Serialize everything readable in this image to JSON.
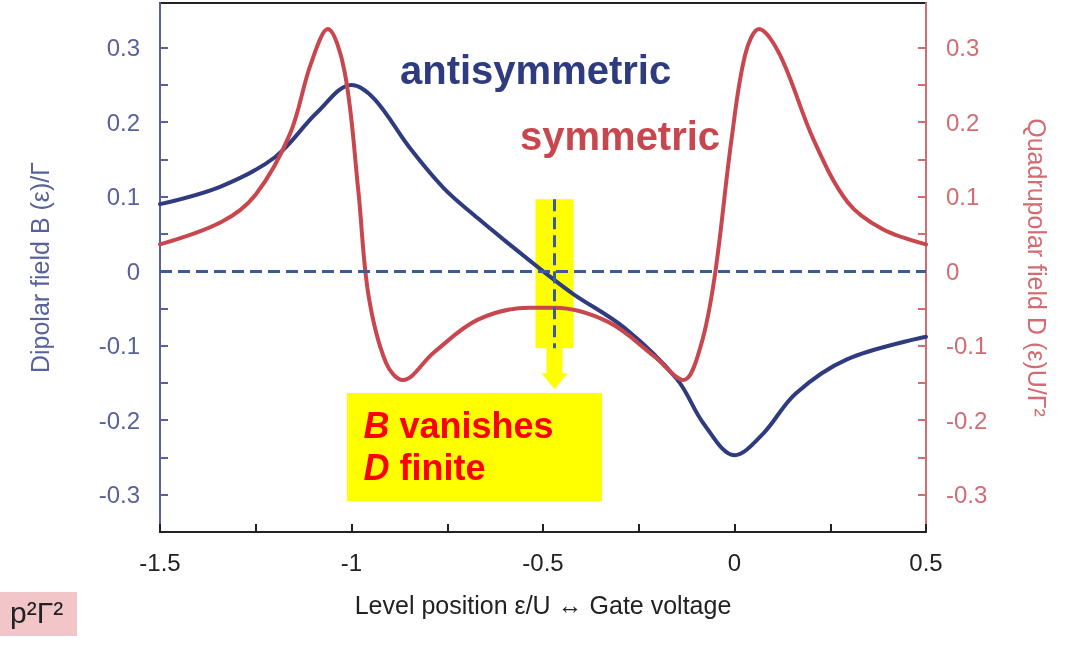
{
  "chart_data": {
    "type": "line",
    "xlabel": "Level position ε/U ↔ Gate voltage",
    "ylabel": "Dipolar field B (ε)/Γ",
    "y2label": "Quadrupolar field D (ε)U/Γ²",
    "xlim": [
      -1.5,
      0.5
    ],
    "xticks": [
      -1.5,
      {
        "value": -1.25,
        "label": null
      },
      -1,
      {
        "value": -0.75,
        "label": null
      },
      -0.5,
      {
        "value": -0.25,
        "label": null
      },
      0,
      {
        "value": 0.25,
        "label": null
      },
      0.5
    ],
    "ylim": [
      -0.35,
      0.36
    ],
    "yticks": [
      -0.3,
      {
        "value": -0.25,
        "label": null
      },
      -0.2,
      {
        "value": -0.15,
        "label": null
      },
      -0.1,
      {
        "value": -0.05,
        "label": null
      },
      0,
      {
        "value": 0.05,
        "label": null
      },
      0.1,
      {
        "value": 0.15,
        "label": null
      },
      0.2,
      {
        "value": 0.25,
        "label": null
      },
      0.3
    ],
    "y2lim": [
      -0.35,
      0.36
    ],
    "y2ticks": [
      -0.3,
      {
        "value": -0.25,
        "label": null
      },
      -0.2,
      {
        "value": -0.15,
        "label": null
      },
      -0.1,
      {
        "value": -0.05,
        "label": null
      },
      0,
      {
        "value": 0.05,
        "label": null
      },
      0.1,
      {
        "value": 0.15,
        "label": null
      },
      0.2,
      {
        "value": 0.25,
        "label": null
      },
      0.3
    ],
    "grid": false,
    "legend": false,
    "series": [
      {
        "name": "antisymmetric",
        "color": "#2e3b7e",
        "x": [
          -1.5,
          -1.34,
          -1.2,
          -1.09,
          -1.0,
          -0.94,
          -0.85,
          -0.76,
          -0.67,
          -0.58,
          -0.48,
          -0.42,
          -0.285,
          -0.15,
          -0.08,
          0.0,
          0.073,
          0.16,
          0.295,
          0.5
        ],
        "values": [
          0.09,
          0.114,
          0.153,
          0.213,
          0.25,
          0.231,
          0.167,
          0.112,
          0.071,
          0.033,
          -0.008,
          -0.031,
          -0.077,
          -0.145,
          -0.205,
          -0.247,
          -0.219,
          -0.164,
          -0.118,
          -0.088
        ]
      },
      {
        "name": "symmetric",
        "color": "#c8474f",
        "axis": "y2",
        "x": [
          -1.5,
          -1.34,
          -1.25,
          -1.16,
          -1.107,
          -1.062,
          -1.018,
          -0.982,
          -0.956,
          -0.91,
          -0.866,
          -0.785,
          -0.67,
          -0.536,
          -0.47,
          -0.33,
          -0.21,
          -0.133,
          -0.088,
          -0.052,
          -0.008,
          0.028,
          0.064,
          0.118,
          0.207,
          0.295,
          0.385,
          0.5
        ],
        "values": [
          0.036,
          0.066,
          0.103,
          0.185,
          0.277,
          0.325,
          0.268,
          0.107,
          -0.031,
          -0.123,
          -0.146,
          -0.109,
          -0.065,
          -0.049,
          -0.049,
          -0.068,
          -0.114,
          -0.146,
          -0.1,
          -0.008,
          0.176,
          0.291,
          0.325,
          0.291,
          0.176,
          0.093,
          0.057,
          0.036
        ]
      }
    ],
    "ref_lines": [
      {
        "axis": "y",
        "value": 0,
        "color": "#3a5a9a",
        "line_style": "dashed"
      },
      {
        "axis": "x",
        "value": -0.47,
        "color": "#3a5a9a",
        "line_style": "dashed"
      }
    ],
    "annotations": [
      "B vanishes\nD finite",
      "p²Γ²"
    ]
  }
}
